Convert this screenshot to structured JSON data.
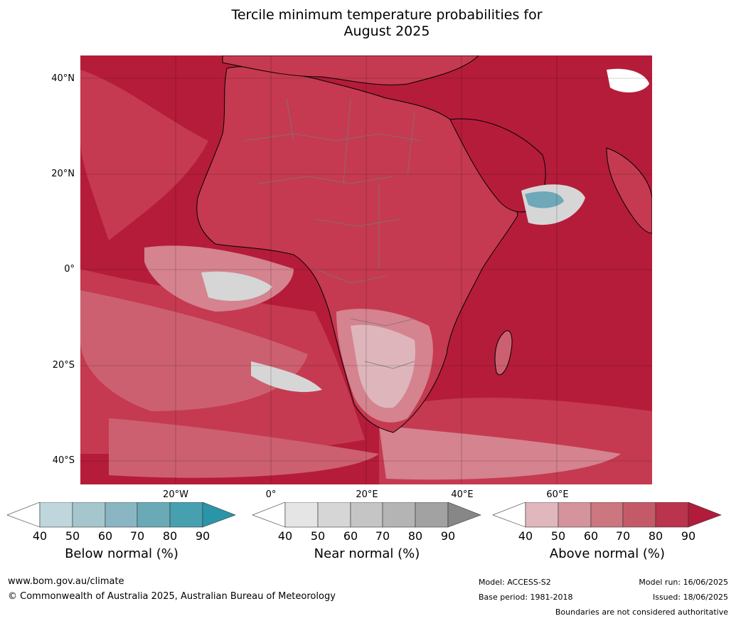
{
  "title_line1": "Tercile minimum temperature probabilities for",
  "title_line2": "August 2025",
  "map": {
    "lat_labels": [
      "40°N",
      "20°N",
      "0°",
      "20°S",
      "40°S"
    ],
    "lon_labels": [
      "20°W",
      "0°",
      "20°E",
      "40°E",
      "60°E"
    ],
    "colors": {
      "above_90": "#b51c3a",
      "above_80": "#c53a50",
      "above_70": "#cc6070",
      "above_60": "#d4838f",
      "above_50": "#deb5bb",
      "near": "#d6d6d6",
      "below": "#6fa8b8",
      "white": "#ffffff",
      "coast": "#000000",
      "border": "#777777"
    }
  },
  "colorbars": [
    {
      "label": "Below normal (%)",
      "ticks": [
        "40",
        "50",
        "60",
        "70",
        "80",
        "90"
      ],
      "colors": [
        "#ffffff",
        "#bfd6dd",
        "#a6c6ce",
        "#89b6c2",
        "#6aaab6",
        "#47a0b0",
        "#2a95a8"
      ]
    },
    {
      "label": "Near normal (%)",
      "ticks": [
        "40",
        "50",
        "60",
        "70",
        "80",
        "90"
      ],
      "colors": [
        "#ffffff",
        "#e5e5e5",
        "#d6d6d6",
        "#c5c5c5",
        "#b4b4b4",
        "#a2a2a2",
        "#878787"
      ]
    },
    {
      "label": "Above normal (%)",
      "ticks": [
        "40",
        "50",
        "60",
        "70",
        "80",
        "90"
      ],
      "colors": [
        "#ffffff",
        "#e0b7bd",
        "#d5939d",
        "#cc7680",
        "#c45a68",
        "#b9344c",
        "#b01c3a"
      ]
    }
  ],
  "footer": {
    "url": "www.bom.gov.au/climate",
    "copyright": "© Commonwealth of Australia 2025, Australian Bureau of Meteorology",
    "model": "Model: ACCESS-S2",
    "base_period": "Base period: 1981-2018",
    "model_run": "Model run: 16/06/2025",
    "issued": "Issued: 18/06/2025",
    "disclaimer": "Boundaries are not considered authoritative"
  }
}
